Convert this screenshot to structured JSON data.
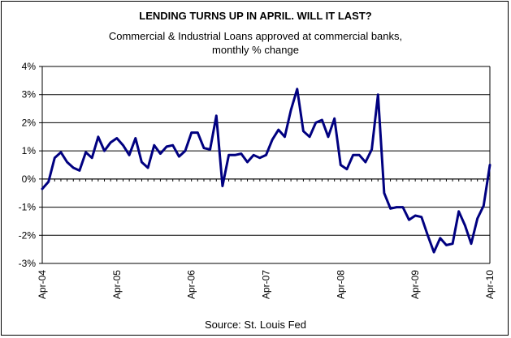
{
  "chart_data": {
    "type": "line",
    "title": "LENDING TURNS UP IN APRIL. WILL IT LAST?",
    "subtitle_lines": [
      "Commercial & Industrial Loans approved at commercial banks,",
      "monthly % change"
    ],
    "source": "Source: St. Louis Fed",
    "xlabel": "",
    "ylabel": "",
    "ylim": [
      -3,
      4
    ],
    "y_ticks": [
      -3,
      -2,
      -1,
      0,
      1,
      2,
      3,
      4
    ],
    "y_tick_labels": [
      "-3%",
      "-2%",
      "-1%",
      "0%",
      "1%",
      "2%",
      "3%",
      "4%"
    ],
    "x_tick_labels": [
      "Apr-04",
      "Apr-05",
      "Apr-06",
      "Apr-07",
      "Apr-08",
      "Apr-09",
      "Apr-10"
    ],
    "grid": true,
    "legend": "none",
    "line_color": "#000080",
    "series": [
      {
        "values": [
          -0.35,
          -0.1,
          0.75,
          0.95,
          0.6,
          0.4,
          0.3,
          0.95,
          0.75,
          1.5,
          1.0,
          1.3,
          1.45,
          1.2,
          0.85,
          1.45,
          0.6,
          0.4,
          1.2,
          0.9,
          1.15,
          1.2,
          0.8,
          1.0,
          1.65,
          1.65,
          1.1,
          1.05,
          2.25,
          -0.25,
          0.85,
          0.85,
          0.9,
          0.6,
          0.85,
          0.75,
          0.85,
          1.4,
          1.75,
          1.5,
          2.45,
          3.2,
          1.7,
          1.5,
          2.0,
          2.1,
          1.5,
          2.15,
          0.5,
          0.35,
          0.85,
          0.85,
          0.6,
          1.05,
          3.0,
          -0.5,
          -1.05,
          -1.0,
          -1.0,
          -1.45,
          -1.3,
          -1.35,
          -2.0,
          -2.6,
          -2.1,
          -2.35,
          -2.3,
          -1.15,
          -1.65,
          -2.3,
          -1.4,
          -0.95,
          0.5
        ]
      }
    ]
  }
}
